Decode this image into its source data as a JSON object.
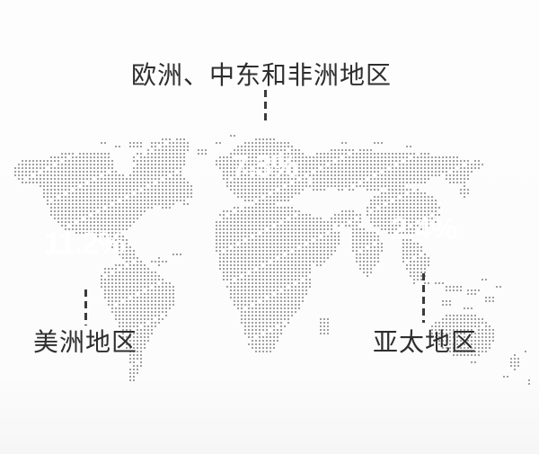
{
  "chart_data": {
    "type": "map",
    "subtype": "dotted-world-bubble-map",
    "categories": [
      "欧洲、中东和非洲地区",
      "美洲地区",
      "亚太地区"
    ],
    "values": [
      7.3,
      11.2,
      2.4
    ],
    "value_format": "percent",
    "legend": "none",
    "annotations": "each region bubble connected to its label with a vertical dashed line"
  },
  "regions": [
    {
      "id": "emea",
      "label": "欧洲、中东和非洲地区",
      "value": "7.3%",
      "label_position": "top"
    },
    {
      "id": "americas",
      "label": "美洲地区",
      "value": "11.2%",
      "label_position": "bottom"
    },
    {
      "id": "apac",
      "label": "亚太地区",
      "value": "2.4%",
      "label_position": "bottom"
    }
  ],
  "colors": {
    "bubble_fill": "#F6B40E",
    "bubble_text": "#FFFFFF",
    "label_text": "#2E2E2E",
    "connector": "#3B3B3B",
    "map_dot": "#969696",
    "background": "#FDFDFD"
  },
  "map": {
    "name": "dotted-world-map"
  }
}
